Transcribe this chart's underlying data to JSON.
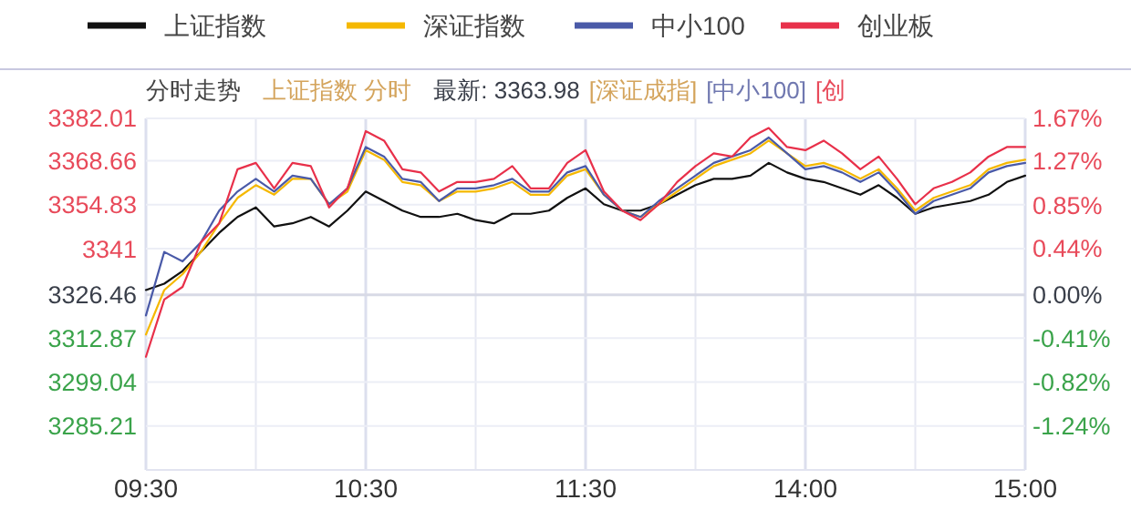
{
  "chart_data": {
    "type": "line",
    "title": "分时走势",
    "subtitle": "上证指数 分时",
    "annotations": [
      "最新: 3363.98",
      "[深证成指]",
      "[中小100]",
      "[创"
    ],
    "legend": "top",
    "grid": true,
    "marker": "none",
    "line_style": "solid",
    "categories": [
      "09:30",
      null,
      null,
      null,
      null,
      null,
      null,
      null,
      null,
      null,
      null,
      null,
      "10:30",
      null,
      null,
      null,
      null,
      null,
      null,
      null,
      null,
      null,
      null,
      null,
      "11:30",
      null,
      null,
      null,
      null,
      null,
      null,
      null,
      null,
      null,
      null,
      null,
      "14:00",
      null,
      null,
      null,
      null,
      null,
      null,
      null,
      null,
      null,
      null,
      null,
      "15:00"
    ],
    "ylim": [
      3271.4,
      3382.01
    ],
    "yticks": [
      3382.01,
      3368.66,
      3354.83,
      3341.0,
      3326.46,
      3312.87,
      3299.04,
      3285.21
    ],
    "y2lim": [
      -1.655,
      1.67
    ],
    "y2ticks": [
      {
        "value": 1.67,
        "label": "1.67%"
      },
      {
        "value": 1.27,
        "label": "1.27%"
      },
      {
        "value": 0.85,
        "label": "0.85%"
      },
      {
        "value": 0.44,
        "label": "0.44%"
      },
      {
        "value": 0,
        "label": "0.00%"
      },
      {
        "value": -0.41,
        "label": "-0.41%"
      },
      {
        "value": -0.82,
        "label": "-0.82%"
      },
      {
        "value": -1.24,
        "label": "-1.24%"
      }
    ],
    "series": [
      {
        "name": "上证指数",
        "color": "#111111",
        "values": [
          3328,
          3330,
          3334,
          3340,
          3346,
          3351,
          3354,
          3348,
          3349,
          3351,
          3348,
          3353,
          3359,
          3356,
          3353,
          3351,
          3351,
          3352,
          3350,
          3349,
          3352,
          3352,
          3353,
          3357,
          3360,
          3355,
          3353,
          3353,
          3355,
          3358,
          3361,
          3363,
          3363,
          3364,
          3368,
          3365,
          3363,
          3362,
          3360,
          3358,
          3361,
          3357,
          3352,
          3354,
          3355,
          3356,
          3358,
          3362,
          3364
        ]
      },
      {
        "name": "深证指数",
        "color": "#f5b800",
        "values": [
          3314,
          3328,
          3333,
          3340,
          3349,
          3357,
          3361,
          3358,
          3363,
          3363,
          3355,
          3359,
          3372,
          3369,
          3362,
          3361,
          3356,
          3359,
          3359,
          3360,
          3362,
          3358,
          3358,
          3364,
          3366,
          3358,
          3353,
          3351,
          3355,
          3359,
          3363,
          3367,
          3369,
          3371,
          3375,
          3371,
          3367,
          3368,
          3366,
          3363,
          3366,
          3360,
          3353,
          3357,
          3359,
          3361,
          3366,
          3368,
          3369
        ]
      },
      {
        "name": "中小100",
        "color": "#4a5aa8",
        "values": [
          3320,
          3340,
          3337,
          3343,
          3353,
          3359,
          3363,
          3359,
          3364,
          3363,
          3355,
          3360,
          3373,
          3370,
          3363,
          3362,
          3356,
          3360,
          3360,
          3361,
          3363,
          3359,
          3359,
          3365,
          3367,
          3358,
          3353,
          3351,
          3356,
          3360,
          3364,
          3368,
          3370,
          3372,
          3376,
          3371,
          3366,
          3367,
          3365,
          3362,
          3365,
          3359,
          3352,
          3356,
          3358,
          3360,
          3365,
          3367,
          3368
        ]
      },
      {
        "name": "创业板",
        "color": "#e8304a",
        "values": [
          3307,
          3325,
          3329,
          3343,
          3349,
          3366,
          3368,
          3360,
          3368,
          3367,
          3354,
          3360,
          3378,
          3375,
          3366,
          3365,
          3359,
          3362,
          3362,
          3363,
          3367,
          3360,
          3360,
          3368,
          3372,
          3359,
          3353,
          3350,
          3355,
          3362,
          3367,
          3371,
          3370,
          3376,
          3379,
          3373,
          3372,
          3375,
          3371,
          3366,
          3370,
          3363,
          3355,
          3360,
          3362,
          3365,
          3370,
          3373,
          3373
        ]
      }
    ]
  }
}
